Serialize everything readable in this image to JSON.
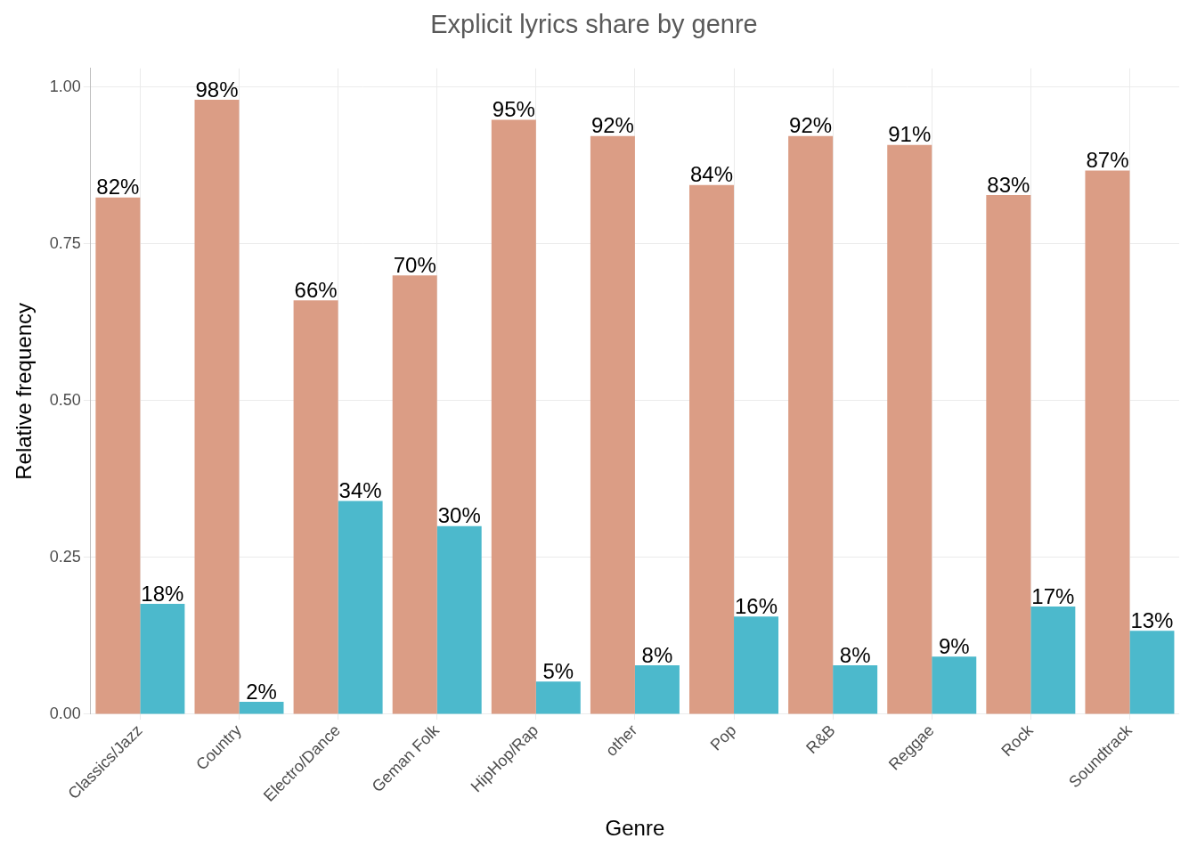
{
  "chart_data": {
    "type": "bar",
    "title": "Explicit lyrics share by genre",
    "x_label": "Genre",
    "y_label": "Relative frequency",
    "categories": [
      "Classics/Jazz",
      "Country",
      "Electro/Dance",
      "Geman Folk",
      "HipHop/Rap",
      "other",
      "Pop",
      "R&B",
      "Reggae",
      "Rock",
      "Soundtrack"
    ],
    "series": [
      {
        "color": "#DB9D85",
        "values": [
          0.824,
          0.98,
          0.66,
          0.7,
          0.948,
          0.922,
          0.844,
          0.922,
          0.908,
          0.828,
          0.867
        ],
        "value_labels": [
          "82%",
          "98%",
          "66%",
          "70%",
          "95%",
          "92%",
          "84%",
          "92%",
          "91%",
          "83%",
          "87%"
        ]
      },
      {
        "color": "#4CB9CC",
        "values": [
          0.176,
          0.02,
          0.34,
          0.3,
          0.052,
          0.078,
          0.156,
          0.078,
          0.092,
          0.172,
          0.133
        ],
        "value_labels": [
          "18%",
          "2%",
          "34%",
          "30%",
          "5%",
          "8%",
          "16%",
          "8%",
          "9%",
          "17%",
          "13%"
        ]
      }
    ],
    "ylim": [
      0,
      1.03
    ],
    "yticks": [
      {
        "value": 0,
        "label": "0.00"
      },
      {
        "value": 0.25,
        "label": "0.25"
      },
      {
        "value": 0.5,
        "label": "0.50"
      },
      {
        "value": 0.75,
        "label": "0.75"
      },
      {
        "value": 1,
        "label": "1.00"
      }
    ],
    "grid": true,
    "data_labels": true
  }
}
